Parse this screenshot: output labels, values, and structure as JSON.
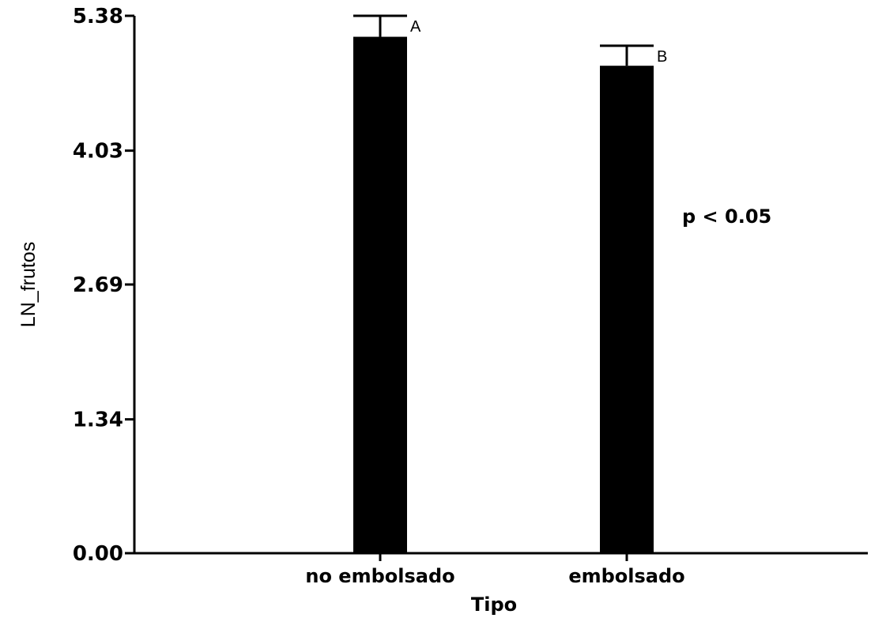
{
  "chart_data": {
    "type": "bar",
    "categories": [
      "no embolsado",
      "embolsado"
    ],
    "values": [
      5.17,
      4.88
    ],
    "error_upper": [
      5.38,
      5.08
    ],
    "group_letters": [
      "A",
      "B"
    ],
    "xlabel": "Tipo",
    "ylabel": "LN_frutos",
    "ylim": [
      0,
      5.38
    ],
    "yticks": [
      "0.00",
      "1.34",
      "2.69",
      "4.03",
      "5.38"
    ],
    "annotation": "p < 0.05",
    "grid": false,
    "bar_color": "#000000"
  }
}
